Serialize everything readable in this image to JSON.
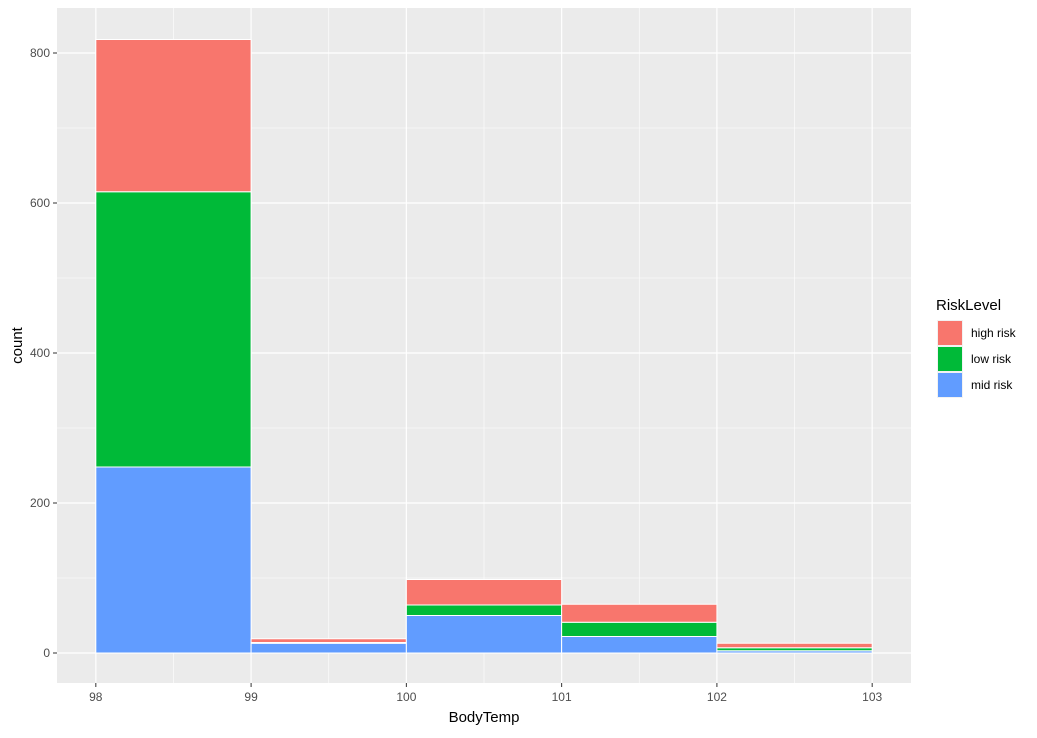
{
  "chart_data": {
    "type": "bar",
    "stacked": true,
    "histogram": true,
    "xlabel": "BodyTemp",
    "ylabel": "count",
    "x_ticks": [
      98,
      99,
      100,
      101,
      102,
      103
    ],
    "xlim": [
      97.75,
      103.25
    ],
    "ylim": [
      -40,
      860
    ],
    "y_ticks": [
      0,
      200,
      400,
      600,
      800
    ],
    "grid": true,
    "legend": {
      "title": "RiskLevel",
      "placement": "right",
      "entries": [
        "high risk",
        "low risk",
        "mid risk"
      ]
    },
    "bins": [
      {
        "from": 98,
        "to": 99
      },
      {
        "from": 99,
        "to": 100
      },
      {
        "from": 100,
        "to": 101
      },
      {
        "from": 101,
        "to": 102
      },
      {
        "from": 102,
        "to": 103
      }
    ],
    "series": [
      {
        "name": "mid risk",
        "color": "#619CFF",
        "values": [
          248,
          13,
          50,
          22,
          3
        ]
      },
      {
        "name": "low risk",
        "color": "#00BA38",
        "values": [
          367,
          1,
          14,
          19,
          4
        ]
      },
      {
        "name": "high risk",
        "color": "#F8766D",
        "values": [
          203,
          5,
          34,
          24,
          6
        ]
      }
    ],
    "panel_color": "#EBEBEB",
    "grid_color": "#FFFFFF"
  }
}
